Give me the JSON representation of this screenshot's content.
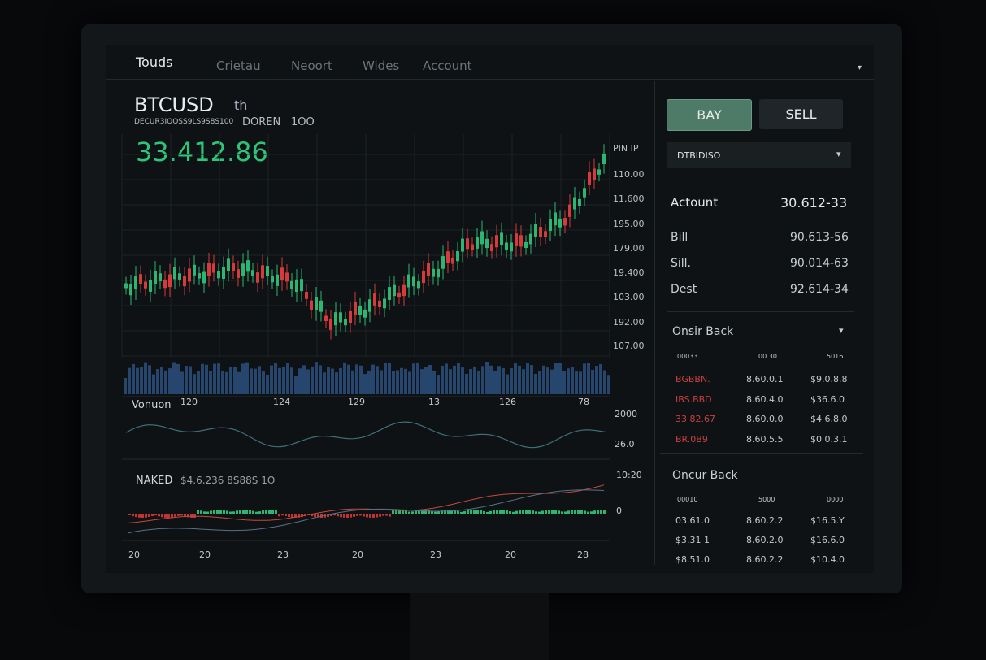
{
  "nav": {
    "items": [
      "Touds",
      "Crietau",
      "Neoort",
      "Wides",
      "Account"
    ]
  },
  "header": {
    "symbol": "BTCUSD",
    "timeframe": "th",
    "subtitle": "DECUR3IOOSS9LS9S8S100",
    "mode": "DOREN",
    "interval": "1OO",
    "price": "33.412.86"
  },
  "price_axis": {
    "labels": [
      "PIN IP",
      "110.00",
      "11.600",
      "195.00",
      "179.00",
      "19.400",
      "103.00",
      "192.00",
      "107.00"
    ]
  },
  "volume": {
    "title": "Vonuon",
    "labels": [
      "120",
      "124",
      "129",
      "13",
      "126",
      "78"
    ],
    "axis": [
      "2000",
      "26.0"
    ]
  },
  "indicator": {
    "title": "NAKED",
    "value": "$4.6.236 8S88S 1O",
    "axis": [
      "10:20",
      "0"
    ],
    "x_labels": [
      "20",
      "20",
      "23",
      "20",
      "23",
      "20",
      "28"
    ]
  },
  "trade": {
    "buy": "BAY",
    "sell": "SELL",
    "pair": "DTBIDISO"
  },
  "account": {
    "rows": [
      [
        "Actount",
        "30.612-33"
      ],
      [
        "Bill",
        "90.613-56"
      ],
      [
        "Sill.",
        "90.014-63"
      ],
      [
        "Dest",
        "92.614-34"
      ]
    ]
  },
  "book1": {
    "title": "Onsir Back",
    "headers": [
      "00033",
      "00.30",
      "5016"
    ],
    "rows": [
      [
        "BGBBN.",
        "8.60.0.1",
        "$9.0.8.8"
      ],
      [
        "IBS.BBD",
        "8.60.4.0",
        "$36.6.0"
      ],
      [
        "33 82.67",
        "8.60.0.0",
        "$4 6.8.0"
      ],
      [
        "BR.0B9",
        "8.60.5.5",
        "$0 0.3.1"
      ]
    ]
  },
  "book2": {
    "title": "Oncur Back",
    "headers": [
      "00010",
      "5000",
      "0000"
    ],
    "rows": [
      [
        "03.61.0",
        "8.60.2.2",
        "$16.5.Y"
      ],
      [
        "$3.31 1",
        "8.60.2.0",
        "$16.6.0"
      ],
      [
        "$8.51.0",
        "8.60.2.2",
        "$10.4.0"
      ]
    ]
  }
}
